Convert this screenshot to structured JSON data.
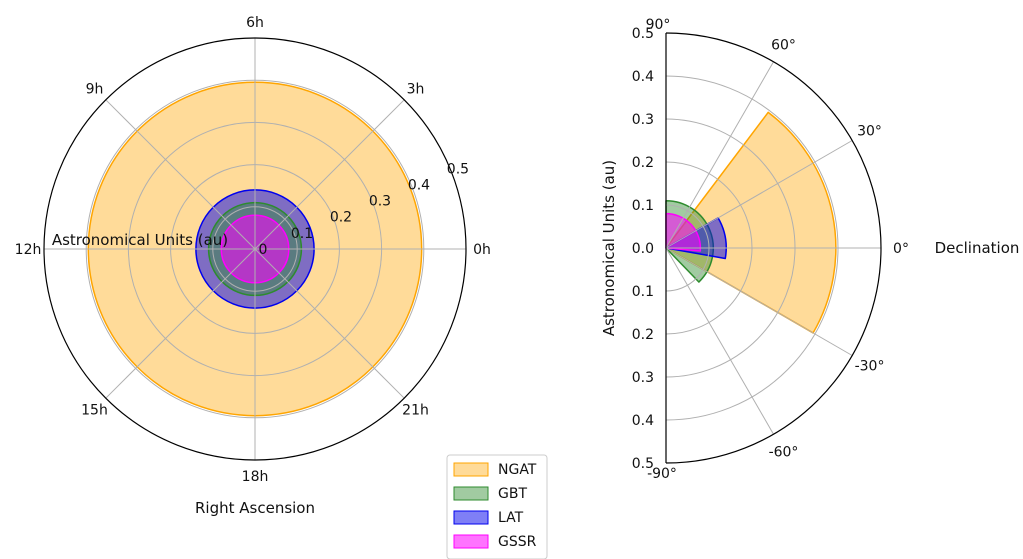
{
  "colors": {
    "NGAT": "#ffa500",
    "GBT": "#2e8b2e",
    "LAT": "#0000ee",
    "GSSR": "#ff00ff",
    "grid": "#b0b0b0",
    "axis": "#000000"
  },
  "chart_data": [
    {
      "type": "polar-area",
      "xlabel": "Right Ascension",
      "rlabel": "Astronomical Units (au)",
      "angle_ticks": [
        "0h",
        "3h",
        "6h",
        "9h",
        "12h",
        "15h",
        "18h",
        "21h"
      ],
      "r_ticks": [
        "0",
        "0.1",
        "0.2",
        "0.3",
        "0.4",
        "0.5"
      ],
      "rlim": [
        0,
        0.5
      ],
      "grid": true,
      "series": [
        {
          "name": "NGAT",
          "r_max": 0.395,
          "ra_range_h": [
            0,
            24
          ]
        },
        {
          "name": "LAT",
          "r_max": 0.14,
          "ra_range_h": [
            0,
            24
          ]
        },
        {
          "name": "GBT",
          "r_max": 0.11,
          "ra_range_h": [
            0,
            24
          ]
        },
        {
          "name": "GSSR",
          "r_max": 0.08,
          "ra_range_h": [
            0,
            24
          ]
        }
      ]
    },
    {
      "type": "polar-sector",
      "xlabel": "Declination",
      "ylabel": "Astronomical Units (au)",
      "angle_ticks": [
        "90°",
        "60°",
        "30°",
        "0°",
        "-30°",
        "-60°",
        "-90°"
      ],
      "r_ticks_upper": [
        "0.5",
        "0.4",
        "0.3",
        "0.2",
        "0.1",
        "0.0"
      ],
      "r_ticks_lower": [
        "0.1",
        "0.2",
        "0.3",
        "0.4",
        "0.5"
      ],
      "rlim": [
        0,
        0.5
      ],
      "dec_range_deg": [
        -90,
        90
      ],
      "grid": true,
      "series": [
        {
          "name": "NGAT",
          "r_max": 0.395,
          "dec_range_deg": [
            -30,
            53
          ]
        },
        {
          "name": "GBT",
          "r_max": 0.11,
          "dec_range_deg": [
            -46,
            90
          ]
        },
        {
          "name": "LAT",
          "r_max": 0.14,
          "dec_range_deg": [
            -10,
            30
          ]
        },
        {
          "name": "GSSR",
          "r_max": 0.08,
          "dec_range_deg": [
            -5,
            90
          ]
        }
      ]
    }
  ],
  "legend": {
    "entries": [
      "NGAT",
      "GBT",
      "LAT",
      "GSSR"
    ]
  }
}
